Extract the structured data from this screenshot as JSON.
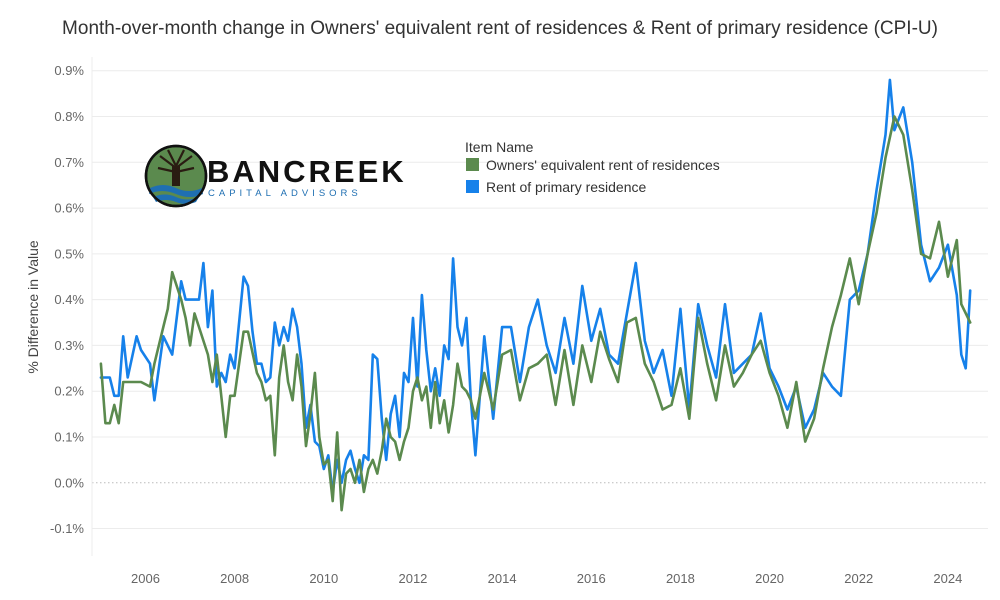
{
  "chart_data": {
    "type": "line",
    "title": "Month-over-month change in Owners' equivalent rent of residences & Rent of primary residence (CPI-U)",
    "ylabel": "% Difference in Value",
    "xlabel": "",
    "ylim": [
      -0.16,
      0.93
    ],
    "y_ticks": [
      -0.1,
      0.0,
      0.1,
      0.2,
      0.3,
      0.4,
      0.5,
      0.6,
      0.7,
      0.8,
      0.9
    ],
    "y_tick_labels": [
      "-0.1%",
      "0.0%",
      "0.1%",
      "0.2%",
      "0.3%",
      "0.4%",
      "0.5%",
      "0.6%",
      "0.7%",
      "0.8%",
      "0.9%"
    ],
    "xlim": [
      2004.8,
      2024.9
    ],
    "x_ticks": [
      2006,
      2008,
      2010,
      2012,
      2014,
      2016,
      2018,
      2020,
      2022,
      2024
    ],
    "x_tick_labels": [
      "2006",
      "2008",
      "2010",
      "2012",
      "2014",
      "2016",
      "2018",
      "2020",
      "2022",
      "2024"
    ],
    "grid": "horizontal",
    "legend_title": "Item Name",
    "legend_position": "top-center",
    "series": [
      {
        "name": "Owners' equivalent rent of residences",
        "color": "#5b8a4e",
        "points": [
          [
            2005.0,
            0.26
          ],
          [
            2005.1,
            0.13
          ],
          [
            2005.2,
            0.13
          ],
          [
            2005.3,
            0.17
          ],
          [
            2005.4,
            0.13
          ],
          [
            2005.5,
            0.22
          ],
          [
            2005.7,
            0.22
          ],
          [
            2005.9,
            0.22
          ],
          [
            2006.1,
            0.21
          ],
          [
            2006.2,
            0.26
          ],
          [
            2006.4,
            0.34
          ],
          [
            2006.5,
            0.38
          ],
          [
            2006.6,
            0.46
          ],
          [
            2006.8,
            0.4
          ],
          [
            2006.9,
            0.36
          ],
          [
            2007.0,
            0.3
          ],
          [
            2007.1,
            0.37
          ],
          [
            2007.2,
            0.34
          ],
          [
            2007.4,
            0.28
          ],
          [
            2007.5,
            0.22
          ],
          [
            2007.6,
            0.28
          ],
          [
            2007.8,
            0.1
          ],
          [
            2007.9,
            0.19
          ],
          [
            2008.0,
            0.19
          ],
          [
            2008.1,
            0.26
          ],
          [
            2008.2,
            0.33
          ],
          [
            2008.3,
            0.33
          ],
          [
            2008.5,
            0.24
          ],
          [
            2008.6,
            0.22
          ],
          [
            2008.7,
            0.18
          ],
          [
            2008.8,
            0.19
          ],
          [
            2008.9,
            0.06
          ],
          [
            2009.0,
            0.23
          ],
          [
            2009.1,
            0.3
          ],
          [
            2009.2,
            0.22
          ],
          [
            2009.3,
            0.18
          ],
          [
            2009.4,
            0.28
          ],
          [
            2009.5,
            0.21
          ],
          [
            2009.6,
            0.08
          ],
          [
            2009.7,
            0.15
          ],
          [
            2009.8,
            0.24
          ],
          [
            2009.9,
            0.1
          ],
          [
            2010.0,
            0.04
          ],
          [
            2010.1,
            0.05
          ],
          [
            2010.2,
            -0.04
          ],
          [
            2010.3,
            0.11
          ],
          [
            2010.4,
            -0.06
          ],
          [
            2010.5,
            0.02
          ],
          [
            2010.6,
            0.03
          ],
          [
            2010.7,
            0.0
          ],
          [
            2010.8,
            0.05
          ],
          [
            2010.9,
            -0.02
          ],
          [
            2011.0,
            0.03
          ],
          [
            2011.1,
            0.05
          ],
          [
            2011.2,
            0.02
          ],
          [
            2011.3,
            0.07
          ],
          [
            2011.4,
            0.14
          ],
          [
            2011.5,
            0.1
          ],
          [
            2011.6,
            0.09
          ],
          [
            2011.7,
            0.05
          ],
          [
            2011.8,
            0.09
          ],
          [
            2011.9,
            0.12
          ],
          [
            2012.0,
            0.2
          ],
          [
            2012.1,
            0.23
          ],
          [
            2012.2,
            0.18
          ],
          [
            2012.3,
            0.21
          ],
          [
            2012.4,
            0.12
          ],
          [
            2012.5,
            0.22
          ],
          [
            2012.6,
            0.13
          ],
          [
            2012.7,
            0.18
          ],
          [
            2012.8,
            0.11
          ],
          [
            2012.9,
            0.17
          ],
          [
            2013.0,
            0.26
          ],
          [
            2013.1,
            0.21
          ],
          [
            2013.2,
            0.2
          ],
          [
            2013.3,
            0.18
          ],
          [
            2013.4,
            0.14
          ],
          [
            2013.6,
            0.24
          ],
          [
            2013.8,
            0.16
          ],
          [
            2014.0,
            0.28
          ],
          [
            2014.2,
            0.29
          ],
          [
            2014.4,
            0.18
          ],
          [
            2014.6,
            0.25
          ],
          [
            2014.8,
            0.26
          ],
          [
            2015.0,
            0.28
          ],
          [
            2015.2,
            0.17
          ],
          [
            2015.4,
            0.29
          ],
          [
            2015.6,
            0.17
          ],
          [
            2015.8,
            0.3
          ],
          [
            2016.0,
            0.22
          ],
          [
            2016.2,
            0.33
          ],
          [
            2016.4,
            0.27
          ],
          [
            2016.6,
            0.22
          ],
          [
            2016.8,
            0.35
          ],
          [
            2017.0,
            0.36
          ],
          [
            2017.2,
            0.26
          ],
          [
            2017.4,
            0.22
          ],
          [
            2017.6,
            0.16
          ],
          [
            2017.8,
            0.17
          ],
          [
            2018.0,
            0.25
          ],
          [
            2018.2,
            0.14
          ],
          [
            2018.4,
            0.36
          ],
          [
            2018.6,
            0.26
          ],
          [
            2018.8,
            0.18
          ],
          [
            2019.0,
            0.3
          ],
          [
            2019.2,
            0.21
          ],
          [
            2019.4,
            0.24
          ],
          [
            2019.6,
            0.28
          ],
          [
            2019.8,
            0.31
          ],
          [
            2020.0,
            0.24
          ],
          [
            2020.2,
            0.19
          ],
          [
            2020.4,
            0.12
          ],
          [
            2020.6,
            0.22
          ],
          [
            2020.8,
            0.09
          ],
          [
            2021.0,
            0.14
          ],
          [
            2021.2,
            0.25
          ],
          [
            2021.4,
            0.34
          ],
          [
            2021.6,
            0.41
          ],
          [
            2021.8,
            0.49
          ],
          [
            2022.0,
            0.39
          ],
          [
            2022.2,
            0.5
          ],
          [
            2022.4,
            0.59
          ],
          [
            2022.6,
            0.71
          ],
          [
            2022.8,
            0.8
          ],
          [
            2023.0,
            0.76
          ],
          [
            2023.2,
            0.64
          ],
          [
            2023.4,
            0.5
          ],
          [
            2023.6,
            0.49
          ],
          [
            2023.8,
            0.57
          ],
          [
            2024.0,
            0.45
          ],
          [
            2024.2,
            0.53
          ],
          [
            2024.3,
            0.39
          ],
          [
            2024.5,
            0.35
          ]
        ]
      },
      {
        "name": "Rent of primary residence",
        "color": "#1681ea",
        "points": [
          [
            2005.0,
            0.23
          ],
          [
            2005.1,
            0.23
          ],
          [
            2005.2,
            0.23
          ],
          [
            2005.3,
            0.19
          ],
          [
            2005.4,
            0.19
          ],
          [
            2005.5,
            0.32
          ],
          [
            2005.6,
            0.23
          ],
          [
            2005.8,
            0.32
          ],
          [
            2005.9,
            0.29
          ],
          [
            2006.1,
            0.26
          ],
          [
            2006.2,
            0.18
          ],
          [
            2006.4,
            0.32
          ],
          [
            2006.6,
            0.28
          ],
          [
            2006.8,
            0.44
          ],
          [
            2006.9,
            0.4
          ],
          [
            2007.0,
            0.4
          ],
          [
            2007.2,
            0.4
          ],
          [
            2007.3,
            0.48
          ],
          [
            2007.4,
            0.34
          ],
          [
            2007.5,
            0.42
          ],
          [
            2007.6,
            0.21
          ],
          [
            2007.7,
            0.24
          ],
          [
            2007.8,
            0.22
          ],
          [
            2007.9,
            0.28
          ],
          [
            2008.0,
            0.25
          ],
          [
            2008.2,
            0.45
          ],
          [
            2008.3,
            0.43
          ],
          [
            2008.4,
            0.33
          ],
          [
            2008.5,
            0.26
          ],
          [
            2008.6,
            0.26
          ],
          [
            2008.7,
            0.22
          ],
          [
            2008.8,
            0.23
          ],
          [
            2008.9,
            0.35
          ],
          [
            2009.0,
            0.3
          ],
          [
            2009.1,
            0.34
          ],
          [
            2009.2,
            0.31
          ],
          [
            2009.3,
            0.38
          ],
          [
            2009.4,
            0.34
          ],
          [
            2009.5,
            0.26
          ],
          [
            2009.6,
            0.12
          ],
          [
            2009.7,
            0.17
          ],
          [
            2009.8,
            0.09
          ],
          [
            2009.9,
            0.08
          ],
          [
            2010.0,
            0.03
          ],
          [
            2010.1,
            0.06
          ],
          [
            2010.2,
            -0.02
          ],
          [
            2010.3,
            0.05
          ],
          [
            2010.4,
            0.0
          ],
          [
            2010.5,
            0.05
          ],
          [
            2010.6,
            0.07
          ],
          [
            2010.7,
            0.03
          ],
          [
            2010.8,
            0.0
          ],
          [
            2010.9,
            0.06
          ],
          [
            2011.0,
            0.05
          ],
          [
            2011.1,
            0.28
          ],
          [
            2011.2,
            0.27
          ],
          [
            2011.3,
            0.14
          ],
          [
            2011.4,
            0.05
          ],
          [
            2011.5,
            0.15
          ],
          [
            2011.6,
            0.19
          ],
          [
            2011.7,
            0.1
          ],
          [
            2011.8,
            0.24
          ],
          [
            2011.9,
            0.22
          ],
          [
            2012.0,
            0.36
          ],
          [
            2012.1,
            0.21
          ],
          [
            2012.2,
            0.41
          ],
          [
            2012.3,
            0.29
          ],
          [
            2012.4,
            0.2
          ],
          [
            2012.5,
            0.25
          ],
          [
            2012.6,
            0.19
          ],
          [
            2012.7,
            0.3
          ],
          [
            2012.8,
            0.27
          ],
          [
            2012.9,
            0.49
          ],
          [
            2013.0,
            0.34
          ],
          [
            2013.1,
            0.3
          ],
          [
            2013.2,
            0.36
          ],
          [
            2013.3,
            0.18
          ],
          [
            2013.4,
            0.06
          ],
          [
            2013.6,
            0.32
          ],
          [
            2013.8,
            0.14
          ],
          [
            2014.0,
            0.34
          ],
          [
            2014.2,
            0.34
          ],
          [
            2014.4,
            0.22
          ],
          [
            2014.6,
            0.34
          ],
          [
            2014.8,
            0.4
          ],
          [
            2015.0,
            0.3
          ],
          [
            2015.2,
            0.24
          ],
          [
            2015.4,
            0.36
          ],
          [
            2015.6,
            0.26
          ],
          [
            2015.8,
            0.43
          ],
          [
            2016.0,
            0.31
          ],
          [
            2016.2,
            0.38
          ],
          [
            2016.4,
            0.28
          ],
          [
            2016.6,
            0.26
          ],
          [
            2016.8,
            0.37
          ],
          [
            2017.0,
            0.48
          ],
          [
            2017.2,
            0.31
          ],
          [
            2017.4,
            0.24
          ],
          [
            2017.6,
            0.29
          ],
          [
            2017.8,
            0.19
          ],
          [
            2018.0,
            0.38
          ],
          [
            2018.2,
            0.16
          ],
          [
            2018.4,
            0.39
          ],
          [
            2018.6,
            0.3
          ],
          [
            2018.8,
            0.23
          ],
          [
            2019.0,
            0.39
          ],
          [
            2019.2,
            0.24
          ],
          [
            2019.4,
            0.26
          ],
          [
            2019.6,
            0.28
          ],
          [
            2019.8,
            0.37
          ],
          [
            2020.0,
            0.25
          ],
          [
            2020.2,
            0.21
          ],
          [
            2020.4,
            0.16
          ],
          [
            2020.6,
            0.21
          ],
          [
            2020.8,
            0.12
          ],
          [
            2021.0,
            0.16
          ],
          [
            2021.2,
            0.24
          ],
          [
            2021.4,
            0.21
          ],
          [
            2021.6,
            0.19
          ],
          [
            2021.8,
            0.4
          ],
          [
            2022.0,
            0.42
          ],
          [
            2022.2,
            0.5
          ],
          [
            2022.4,
            0.64
          ],
          [
            2022.6,
            0.76
          ],
          [
            2022.7,
            0.88
          ],
          [
            2022.8,
            0.77
          ],
          [
            2023.0,
            0.82
          ],
          [
            2023.2,
            0.7
          ],
          [
            2023.4,
            0.52
          ],
          [
            2023.6,
            0.44
          ],
          [
            2023.8,
            0.47
          ],
          [
            2024.0,
            0.52
          ],
          [
            2024.2,
            0.41
          ],
          [
            2024.3,
            0.28
          ],
          [
            2024.4,
            0.25
          ],
          [
            2024.5,
            0.42
          ]
        ]
      }
    ]
  },
  "logo": {
    "name": "BANCREEK",
    "tagline": "CAPITAL ADVISORS"
  }
}
